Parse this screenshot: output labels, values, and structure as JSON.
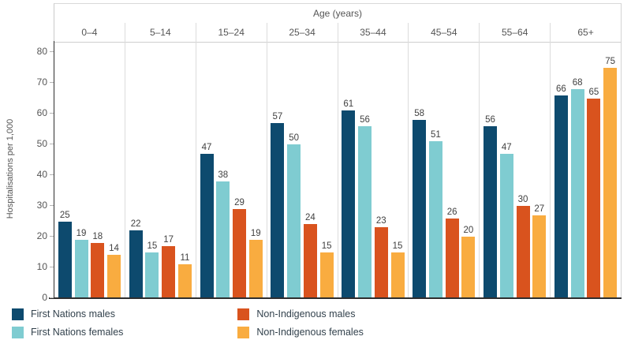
{
  "chart_data": {
    "type": "bar",
    "title": "Age (years)",
    "ylabel": "Hospitalisations per 1,000",
    "ylim": [
      0,
      80
    ],
    "yticks": [
      0,
      10,
      20,
      30,
      40,
      50,
      60,
      70,
      80
    ],
    "grid": false,
    "legend_position": "bottom-left, two columns",
    "categories": [
      "0–4",
      "5–14",
      "15–24",
      "25–34",
      "35–44",
      "45–54",
      "55–64",
      "65+"
    ],
    "series": [
      {
        "name": "First Nations males",
        "color": "#0d4a6e",
        "values": [
          25,
          22,
          47,
          57,
          61,
          58,
          56,
          66
        ]
      },
      {
        "name": "First Nations females",
        "color": "#7fccd1",
        "values": [
          19,
          15,
          38,
          50,
          56,
          51,
          47,
          68
        ]
      },
      {
        "name": "Non-Indigenous males",
        "color": "#d9531e",
        "values": [
          18,
          17,
          29,
          24,
          23,
          26,
          30,
          65
        ]
      },
      {
        "name": "Non-Indigenous females",
        "color": "#f9ac40",
        "values": [
          14,
          11,
          19,
          15,
          15,
          20,
          27,
          75
        ]
      }
    ],
    "bar_labels_shown": true
  },
  "colors": {
    "axis_line": "#2e2e2e",
    "separator_line": "#dcdcdc",
    "tick_text": "#555555",
    "bar_label_text": "#414141",
    "legend_text": "#33424d"
  }
}
